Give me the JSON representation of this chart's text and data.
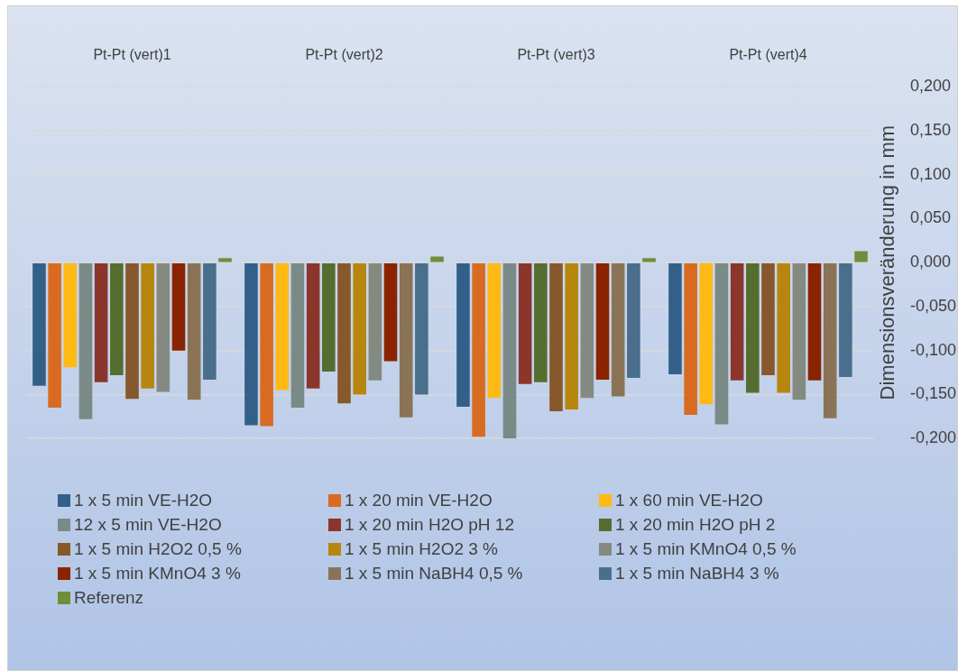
{
  "chart_data": {
    "type": "bar",
    "ylabel": "Dimensionsveränderung in mm",
    "categories": [
      "Pt-Pt (vert)1",
      "Pt-Pt (vert)2",
      "Pt-Pt (vert)3",
      "Pt-Pt (vert)4"
    ],
    "series": [
      {
        "name": "1 x 5 min VE-H2O",
        "color": "#336089",
        "values": [
          -0.14,
          -0.185,
          -0.164,
          -0.127
        ]
      },
      {
        "name": "1 x 20 min VE-H2O",
        "color": "#d86b21",
        "values": [
          -0.165,
          -0.186,
          -0.198,
          -0.173
        ]
      },
      {
        "name": "1 x 60 min VE-H2O",
        "color": "#ffb914",
        "values": [
          -0.119,
          -0.145,
          -0.154,
          -0.161
        ]
      },
      {
        "name": "12 x 5 min VE-H2O",
        "color": "#7a8a87",
        "values": [
          -0.178,
          -0.165,
          -0.2,
          -0.184
        ]
      },
      {
        "name": "1 x 20 min H2O pH 12",
        "color": "#8b362b",
        "values": [
          -0.136,
          -0.143,
          -0.138,
          -0.134
        ]
      },
      {
        "name": "1 x 20 min H2O pH 2",
        "color": "#566d30",
        "values": [
          -0.128,
          -0.124,
          -0.136,
          -0.148
        ]
      },
      {
        "name": "1 x 5 min H2O2 0,5 %",
        "color": "#87582b",
        "values": [
          -0.155,
          -0.16,
          -0.169,
          -0.128
        ]
      },
      {
        "name": "1 x 5 min H2O2 3 %",
        "color": "#b6860f",
        "values": [
          -0.143,
          -0.15,
          -0.167,
          -0.148
        ]
      },
      {
        "name": "1 x 5 min KMnO4 0,5 %",
        "color": "#858a80",
        "values": [
          -0.147,
          -0.134,
          -0.154,
          -0.156
        ]
      },
      {
        "name": "1 x 5 min KMnO4 3 %",
        "color": "#8a2400",
        "values": [
          -0.1,
          -0.112,
          -0.133,
          -0.134
        ]
      },
      {
        "name": "1 x 5 min NaBH4 0,5 %",
        "color": "#8a7455",
        "values": [
          -0.156,
          -0.176,
          -0.152,
          -0.177
        ]
      },
      {
        "name": "1 x 5 min NaBH4 3 %",
        "color": "#4a6f8c",
        "values": [
          -0.133,
          -0.15,
          -0.131,
          -0.13
        ]
      },
      {
        "name": "Referenz",
        "color": "#6f8e3b",
        "values": [
          0.005,
          0.007,
          0.005,
          0.013
        ]
      }
    ],
    "ylim": [
      -0.2,
      0.2
    ],
    "yticks": [
      {
        "value": 0.2,
        "label": "0,200"
      },
      {
        "value": 0.15,
        "label": "0,150"
      },
      {
        "value": 0.1,
        "label": "0,100"
      },
      {
        "value": 0.05,
        "label": "0,050"
      },
      {
        "value": 0,
        "label": "0,000"
      },
      {
        "value": -0.05,
        "label": "-0,050"
      },
      {
        "value": -0.1,
        "label": "-0,100"
      },
      {
        "value": -0.15,
        "label": "-0,150"
      },
      {
        "value": -0.2,
        "label": "-0,200"
      }
    ],
    "grid": "y",
    "legend": "bottom"
  }
}
